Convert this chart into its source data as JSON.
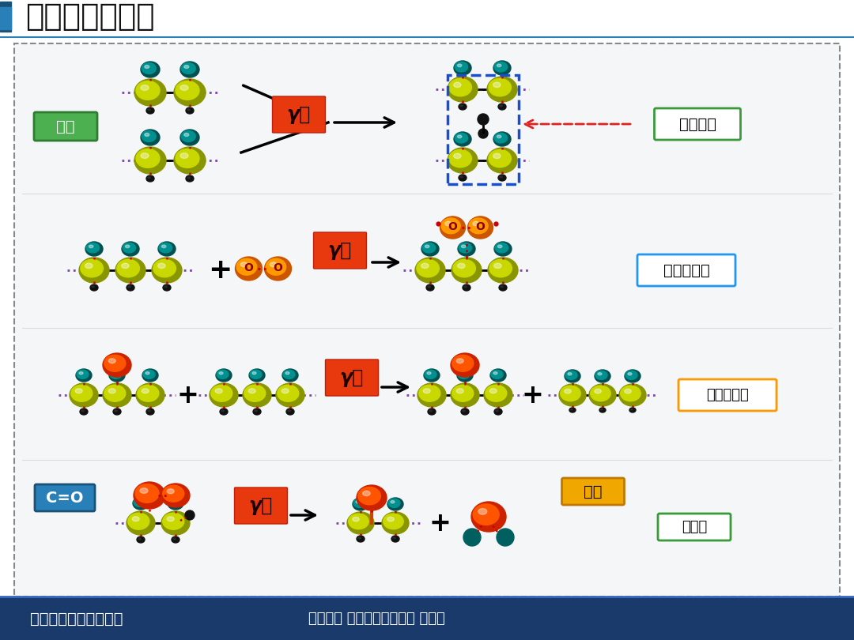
{
  "title": "实验结果与讨论",
  "title_fontsize": 28,
  "title_color": "#1a1a1a",
  "bg_color": "#ffffff",
  "footer_bg": "#1a3a6b",
  "footer_text1": "《电工技术学报》发布",
  "footer_text2": "天津大学 高电压与绝缘技术 实验室",
  "labels": {
    "gel": "凝胶",
    "crosslink": "交联反应",
    "peroxy": "过氧自由基",
    "alkyl_peroxy": "烃基过氧氢",
    "CO": "C=O",
    "hole": "孔洞",
    "ketone_water": "酮和水",
    "gamma": "γ线"
  }
}
